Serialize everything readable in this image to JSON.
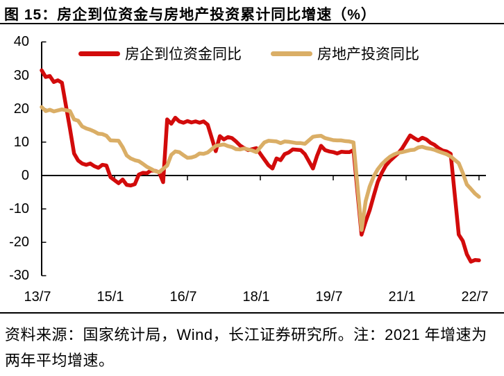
{
  "figure": {
    "title": "图 15：房企到位资金与房地产投资累计同比增速（%）",
    "source_note": "资料来源：国家统计局，Wind，长江证券研究所。注：2021 年增速为两年平均增速。"
  },
  "chart_data": {
    "type": "line",
    "title": "房企到位资金与房地产投资累计同比增速（%）",
    "xlabel": "",
    "ylabel": "",
    "ylim": [
      -30,
      40
    ],
    "y_ticks": [
      40,
      30,
      20,
      10,
      0,
      -10,
      -20,
      -30
    ],
    "x_tick_labels": [
      "13/7",
      "15/1",
      "16/7",
      "18/1",
      "19/7",
      "21/1",
      "22/7"
    ],
    "x_tick_month_index": [
      0,
      18,
      36,
      54,
      72,
      90,
      108
    ],
    "x_months_from": "2013-07",
    "x_month_span": 108,
    "grid": false,
    "legend_position": "top-center",
    "axis_color": "#000000",
    "series": [
      {
        "name": "房企到位资金同比",
        "color": "#D20B0B",
        "points": [
          [
            0,
            31.5
          ],
          [
            1,
            29.5
          ],
          [
            2,
            29.8
          ],
          [
            3,
            28.0
          ],
          [
            4,
            28.5
          ],
          [
            5,
            27.8
          ],
          [
            7,
            14.0
          ],
          [
            8,
            6.6
          ],
          [
            9,
            4.5
          ],
          [
            10,
            3.6
          ],
          [
            11,
            3.2
          ],
          [
            12,
            3.6
          ],
          [
            13,
            2.8
          ],
          [
            14,
            2.3
          ],
          [
            15,
            3.2
          ],
          [
            16,
            3.0
          ],
          [
            17,
            -0.5
          ],
          [
            19,
            -2.3
          ],
          [
            20,
            -1.2
          ],
          [
            21,
            -2.8
          ],
          [
            22,
            -3.0
          ],
          [
            23,
            -2.6
          ],
          [
            24,
            0.3
          ],
          [
            25,
            0.8
          ],
          [
            26,
            0.7
          ],
          [
            27,
            1.5
          ],
          [
            28,
            1.4
          ],
          [
            29,
            1.0
          ],
          [
            30,
            -2.0
          ],
          [
            31,
            16.8
          ],
          [
            32,
            15.5
          ],
          [
            33,
            17.3
          ],
          [
            34,
            16.2
          ],
          [
            35,
            15.8
          ],
          [
            36,
            16.3
          ],
          [
            37,
            15.9
          ],
          [
            38,
            16.2
          ],
          [
            39,
            15.8
          ],
          [
            40,
            16.2
          ],
          [
            41,
            15.2
          ],
          [
            43,
            7.3
          ],
          [
            44,
            11.8
          ],
          [
            45,
            10.8
          ],
          [
            46,
            11.5
          ],
          [
            47,
            11.2
          ],
          [
            48,
            10.2
          ],
          [
            49,
            9.0
          ],
          [
            50,
            8.2
          ],
          [
            51,
            7.6
          ],
          [
            52,
            7.9
          ],
          [
            53,
            8.2
          ],
          [
            55,
            4.8
          ],
          [
            56,
            3.1
          ],
          [
            57,
            2.1
          ],
          [
            58,
            5.1
          ],
          [
            59,
            4.6
          ],
          [
            60,
            6.4
          ],
          [
            61,
            6.9
          ],
          [
            62,
            7.8
          ],
          [
            63,
            7.7
          ],
          [
            64,
            7.6
          ],
          [
            65,
            6.4
          ],
          [
            67,
            2.1
          ],
          [
            68,
            5.9
          ],
          [
            69,
            8.9
          ],
          [
            70,
            7.6
          ],
          [
            71,
            7.2
          ],
          [
            72,
            7.0
          ],
          [
            73,
            6.6
          ],
          [
            74,
            7.1
          ],
          [
            75,
            7.0
          ],
          [
            76,
            7.0
          ],
          [
            77,
            7.6
          ],
          [
            79,
            -17.7
          ],
          [
            80,
            -13.8
          ],
          [
            81,
            -10.4
          ],
          [
            82,
            -6.1
          ],
          [
            83,
            -1.9
          ],
          [
            84,
            0.8
          ],
          [
            85,
            3.0
          ],
          [
            86,
            4.4
          ],
          [
            87,
            5.5
          ],
          [
            88,
            6.6
          ],
          [
            89,
            8.1
          ],
          [
            91,
            12.0
          ],
          [
            92,
            11.2
          ],
          [
            93,
            10.5
          ],
          [
            94,
            11.3
          ],
          [
            95,
            10.8
          ],
          [
            96,
            9.8
          ],
          [
            97,
            9.2
          ],
          [
            98,
            8.2
          ],
          [
            99,
            7.5
          ],
          [
            100,
            7.2
          ],
          [
            101,
            6.5
          ],
          [
            103,
            -17.7
          ],
          [
            104,
            -19.6
          ],
          [
            105,
            -23.6
          ],
          [
            106,
            -25.8
          ],
          [
            107,
            -25.3
          ],
          [
            108,
            -25.4
          ]
        ]
      },
      {
        "name": "房地产投资同比",
        "color": "#DAAE66",
        "points": [
          [
            0,
            20.5
          ],
          [
            1,
            19.3
          ],
          [
            2,
            19.7
          ],
          [
            3,
            19.2
          ],
          [
            4,
            19.5
          ],
          [
            5,
            19.8
          ],
          [
            7,
            19.3
          ],
          [
            8,
            16.8
          ],
          [
            9,
            16.4
          ],
          [
            10,
            14.7
          ],
          [
            11,
            14.1
          ],
          [
            12,
            13.7
          ],
          [
            13,
            13.2
          ],
          [
            14,
            12.5
          ],
          [
            15,
            12.4
          ],
          [
            16,
            11.9
          ],
          [
            17,
            10.5
          ],
          [
            19,
            10.4
          ],
          [
            20,
            8.5
          ],
          [
            21,
            6.0
          ],
          [
            22,
            5.1
          ],
          [
            23,
            4.6
          ],
          [
            24,
            4.3
          ],
          [
            25,
            3.5
          ],
          [
            26,
            2.6
          ],
          [
            27,
            2.0
          ],
          [
            28,
            1.3
          ],
          [
            29,
            1.0
          ],
          [
            31,
            3.0
          ],
          [
            32,
            6.2
          ],
          [
            33,
            7.2
          ],
          [
            34,
            7.0
          ],
          [
            35,
            6.1
          ],
          [
            36,
            5.3
          ],
          [
            37,
            5.4
          ],
          [
            38,
            5.8
          ],
          [
            39,
            6.6
          ],
          [
            40,
            6.5
          ],
          [
            41,
            6.9
          ],
          [
            43,
            8.9
          ],
          [
            44,
            9.1
          ],
          [
            45,
            9.3
          ],
          [
            46,
            8.8
          ],
          [
            47,
            8.5
          ],
          [
            48,
            7.9
          ],
          [
            49,
            7.8
          ],
          [
            50,
            8.1
          ],
          [
            51,
            7.8
          ],
          [
            52,
            7.5
          ],
          [
            53,
            7.0
          ],
          [
            55,
            9.9
          ],
          [
            56,
            10.4
          ],
          [
            57,
            10.3
          ],
          [
            58,
            10.2
          ],
          [
            59,
            9.7
          ],
          [
            60,
            10.2
          ],
          [
            61,
            10.1
          ],
          [
            62,
            9.9
          ],
          [
            63,
            9.7
          ],
          [
            64,
            9.7
          ],
          [
            65,
            9.5
          ],
          [
            67,
            11.6
          ],
          [
            68,
            11.8
          ],
          [
            69,
            11.9
          ],
          [
            70,
            11.2
          ],
          [
            71,
            10.9
          ],
          [
            72,
            10.6
          ],
          [
            73,
            10.5
          ],
          [
            74,
            10.5
          ],
          [
            75,
            10.3
          ],
          [
            76,
            10.2
          ],
          [
            77,
            9.9
          ],
          [
            79,
            -16.3
          ],
          [
            80,
            -7.7
          ],
          [
            81,
            -3.3
          ],
          [
            82,
            -0.3
          ],
          [
            83,
            1.9
          ],
          [
            84,
            3.4
          ],
          [
            85,
            4.6
          ],
          [
            86,
            5.6
          ],
          [
            87,
            6.3
          ],
          [
            88,
            6.8
          ],
          [
            89,
            7.0
          ],
          [
            91,
            7.6
          ],
          [
            92,
            7.7
          ],
          [
            93,
            8.4
          ],
          [
            94,
            8.6
          ],
          [
            95,
            8.2
          ],
          [
            96,
            8.0
          ],
          [
            97,
            7.7
          ],
          [
            98,
            7.2
          ],
          [
            99,
            6.8
          ],
          [
            100,
            6.4
          ],
          [
            101,
            5.7
          ],
          [
            103,
            3.7
          ],
          [
            104,
            0.7
          ],
          [
            105,
            -2.7
          ],
          [
            106,
            -4.0
          ],
          [
            107,
            -5.4
          ],
          [
            108,
            -6.4
          ]
        ]
      }
    ]
  }
}
